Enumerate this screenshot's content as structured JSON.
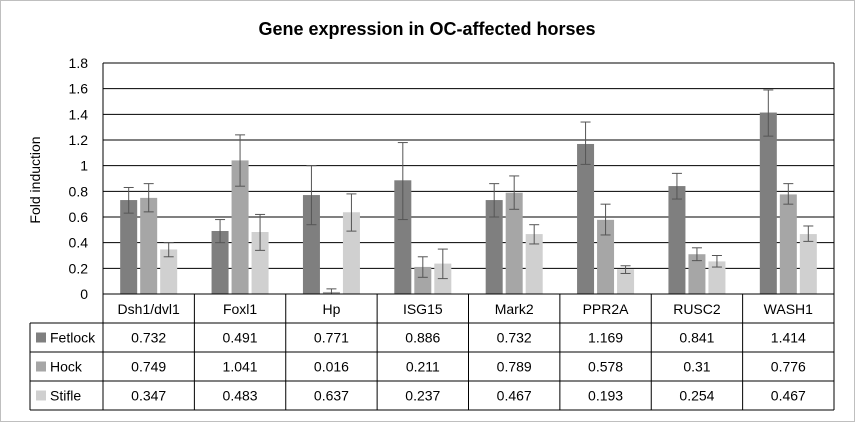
{
  "chart_data": {
    "type": "bar",
    "title": "Gene expression in OC-affected horses",
    "xlabel": "",
    "ylabel": "Fold induction",
    "ylim": [
      0,
      1.8
    ],
    "yticks": [
      "0",
      "0.2",
      "0.4",
      "0.6",
      "0.8",
      "1",
      "1.2",
      "1.4",
      "1.6",
      "1.8"
    ],
    "grid": true,
    "legend": "data-table",
    "categories": [
      "Dsh1/dvl1",
      "Foxl1",
      "Hp",
      "ISG15",
      "Mark2",
      "PPR2A",
      "RUSC2",
      "WASH1"
    ],
    "series": [
      {
        "name": "Fetlock",
        "color": "#7f7f7f",
        "values": [
          0.732,
          0.491,
          0.771,
          0.886,
          0.732,
          1.169,
          0.841,
          1.414
        ],
        "labels": [
          "0.732",
          "0.491",
          "0.771",
          "0.886",
          "0.732",
          "1.169",
          "0.841",
          "1.414"
        ],
        "err_low": [
          0.63,
          0.4,
          0.54,
          0.58,
          0.6,
          1.01,
          0.74,
          1.23
        ],
        "err_high": [
          0.83,
          0.58,
          1.0,
          1.18,
          0.86,
          1.34,
          0.94,
          1.59
        ]
      },
      {
        "name": "Hock",
        "color": "#a6a6a6",
        "values": [
          0.749,
          1.041,
          0.016,
          0.211,
          0.789,
          0.578,
          0.31,
          0.776
        ],
        "labels": [
          "0.749",
          "1.041",
          "0.016",
          "0.211",
          "0.789",
          "0.578",
          "0.31",
          "0.776"
        ],
        "err_low": [
          0.64,
          0.84,
          0.0,
          0.13,
          0.66,
          0.46,
          0.26,
          0.7
        ],
        "err_high": [
          0.86,
          1.24,
          0.04,
          0.29,
          0.92,
          0.7,
          0.36,
          0.86
        ]
      },
      {
        "name": "Stifle",
        "color": "#d0d0d0",
        "values": [
          0.347,
          0.483,
          0.637,
          0.237,
          0.467,
          0.193,
          0.254,
          0.467
        ],
        "labels": [
          "0.347",
          "0.483",
          "0.637",
          "0.237",
          "0.467",
          "0.193",
          "0.254",
          "0.467"
        ],
        "err_low": [
          0.29,
          0.34,
          0.49,
          0.12,
          0.39,
          0.16,
          0.21,
          0.41
        ],
        "err_high": [
          0.4,
          0.62,
          0.78,
          0.35,
          0.54,
          0.22,
          0.3,
          0.53
        ]
      }
    ]
  }
}
